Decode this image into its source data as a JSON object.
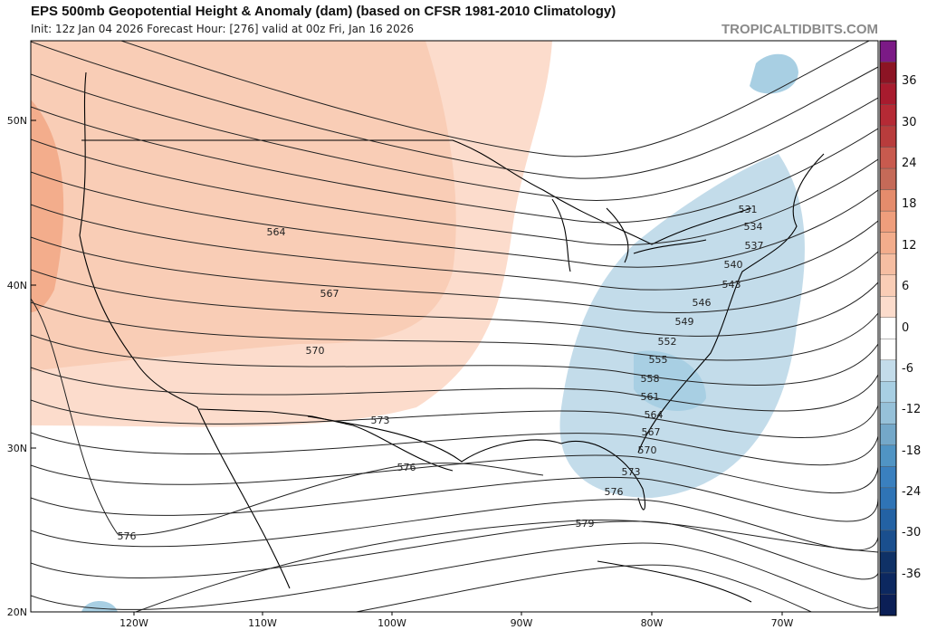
{
  "header": {
    "title": "EPS 500mb Geopotential Height & Anomaly (dam) (based on CFSR 1981-2010 Climatology)",
    "subtitle": "Init: 12z Jan 04 2026   Forecast Hour: [276]   valid at 00z Fri, Jan 16 2026",
    "brand": "TROPICALTIDBITS.COM"
  },
  "axes": {
    "lat_labels": [
      "50N",
      "40N",
      "30N",
      "20N"
    ],
    "lon_labels": [
      "120W",
      "110W",
      "100W",
      "90W",
      "80W",
      "70W"
    ]
  },
  "contours": {
    "labels": [
      "531",
      "534",
      "537",
      "540",
      "543",
      "546",
      "549",
      "552",
      "555",
      "558",
      "561",
      "564",
      "567",
      "570",
      "573",
      "576",
      "579",
      "564",
      "567",
      "570",
      "573",
      "576",
      "576"
    ]
  },
  "colorbar": {
    "labels": [
      "36",
      "30",
      "24",
      "18",
      "12",
      "6",
      "0",
      "-6",
      "-12",
      "-18",
      "-24",
      "-30",
      "-36"
    ],
    "colors": [
      "#7b1a86",
      "#8c1424",
      "#a81b2e",
      "#b52a35",
      "#b83c3c",
      "#c85a4e",
      "#c56a58",
      "#e58c6c",
      "#ef9e7c",
      "#f3ad8c",
      "#f6bea2",
      "#f9cdb6",
      "#fcdccc",
      "#ffffff",
      "#ffffff",
      "#c3dcea",
      "#a8cfe3",
      "#96c1d9",
      "#74a8c9",
      "#5094c4",
      "#3a80bf",
      "#2f74b6",
      "#2362a4",
      "#1a4f8e",
      "#0f3166",
      "#0c2860",
      "#0b1f56"
    ]
  },
  "anomaly_colors": {
    "warm_light": "#fcdccc",
    "warm_mid": "#f9cdb6",
    "warm_strong": "#f3ad8c",
    "cool_light": "#c3dcea",
    "cool_mid": "#a8cfe3",
    "cool_strong": "#96c1d9"
  }
}
